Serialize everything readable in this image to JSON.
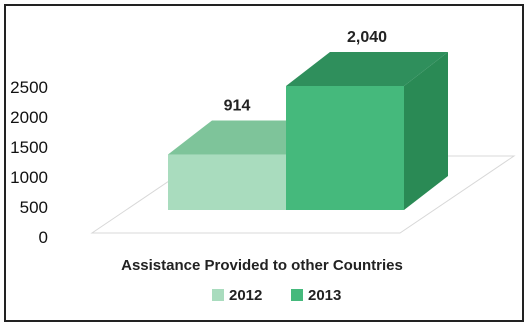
{
  "chart_data": {
    "type": "bar",
    "categories": [
      "Assistance Provided to other Countries"
    ],
    "series": [
      {
        "name": "2012",
        "values": [
          914
        ],
        "label": "914",
        "color": "#a9dcbe",
        "top_color": "#7ec49a",
        "side_color": "#8ccaa6"
      },
      {
        "name": "2013",
        "values": [
          2040
        ],
        "label": "2,040",
        "color": "#45b97c",
        "top_color": "#2f8f5c",
        "side_color": "#2a8a55"
      }
    ],
    "yticks": [
      "0",
      "500",
      "1000",
      "1500",
      "2000",
      "2500"
    ],
    "ylim": [
      0,
      2500
    ],
    "xlabel": "Assistance Provided to other Countries",
    "legend": {
      "position": "bottom"
    },
    "grid": false
  }
}
